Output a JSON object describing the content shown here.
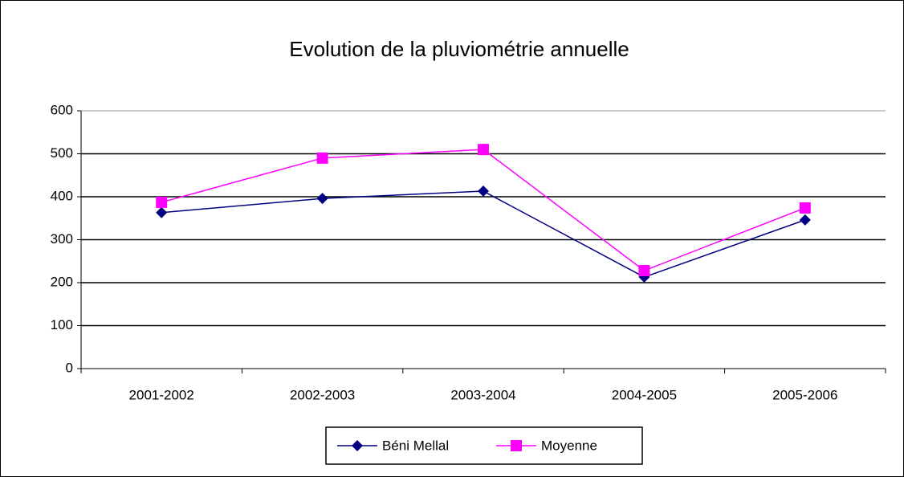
{
  "chart_data": {
    "type": "line",
    "title": "Evolution de la pluviométrie annuelle",
    "categories": [
      "2001-2002",
      "2002-2003",
      "2003-2004",
      "2004-2005",
      "2005-2006"
    ],
    "series": [
      {
        "name": "Béni Mellal",
        "color": "#000080",
        "marker": "diamond",
        "values": [
          363,
          396,
          413,
          213,
          346
        ]
      },
      {
        "name": "Moyenne",
        "color": "#ff00ff",
        "marker": "square",
        "values": [
          387,
          490,
          510,
          228,
          374
        ]
      }
    ],
    "ylim": [
      0,
      600
    ],
    "yticks": [
      0,
      100,
      200,
      300,
      400,
      500,
      600
    ],
    "grid": true,
    "legend": "bottom"
  }
}
